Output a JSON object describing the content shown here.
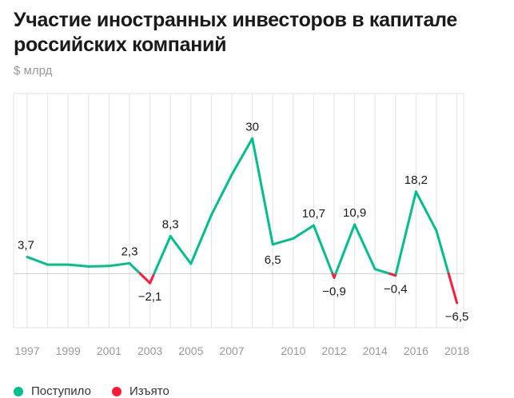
{
  "title": "Участие иностранных инвесторов в капитале российских компаний",
  "unit": "$ млрд",
  "colors": {
    "positive": "#00c08b",
    "negative": "#ff1a3a",
    "grid": "#e3e3e3",
    "axis": "#9a9a9a",
    "label": "#1a1a1a"
  },
  "legend": {
    "positive": "Поступило",
    "negative": "Изъято"
  },
  "chart_data": {
    "type": "line",
    "title": "Участие иностранных инвесторов в капитале российских компаний",
    "xlabel": "",
    "ylabel": "$ млрд",
    "x": [
      1997,
      1998,
      1999,
      2000,
      2001,
      2002,
      2003,
      2004,
      2005,
      2006,
      2007,
      2008,
      2009,
      2010,
      2011,
      2012,
      2013,
      2014,
      2015,
      2016,
      2017,
      2018
    ],
    "values": [
      3.7,
      2.0,
      2.0,
      1.6,
      1.7,
      2.3,
      -2.1,
      8.3,
      2.2,
      13.0,
      22.0,
      30.0,
      6.5,
      7.8,
      10.7,
      -0.9,
      10.9,
      1.0,
      -0.4,
      18.2,
      9.5,
      -6.5
    ],
    "x_ticks": [
      "1997",
      "1999",
      "2001",
      "2003",
      "2005",
      "2007",
      "2010",
      "2012",
      "2014",
      "2016",
      "2018"
    ],
    "data_labels": [
      {
        "year": 1997,
        "text": "3,7"
      },
      {
        "year": 2002,
        "text": "2,3"
      },
      {
        "year": 2003,
        "text": "−2,1"
      },
      {
        "year": 2004,
        "text": "8,3"
      },
      {
        "year": 2008,
        "text": "30"
      },
      {
        "year": 2009,
        "text": "6,5"
      },
      {
        "year": 2011,
        "text": "10,7"
      },
      {
        "year": 2012,
        "text": "−0,9"
      },
      {
        "year": 2013,
        "text": "10,9"
      },
      {
        "year": 2015,
        "text": "−0,4"
      },
      {
        "year": 2016,
        "text": "18,2"
      },
      {
        "year": 2018,
        "text": "−6,5"
      }
    ],
    "ylim": [
      -12,
      40
    ],
    "grid": true,
    "legend_position": "bottom-left"
  }
}
